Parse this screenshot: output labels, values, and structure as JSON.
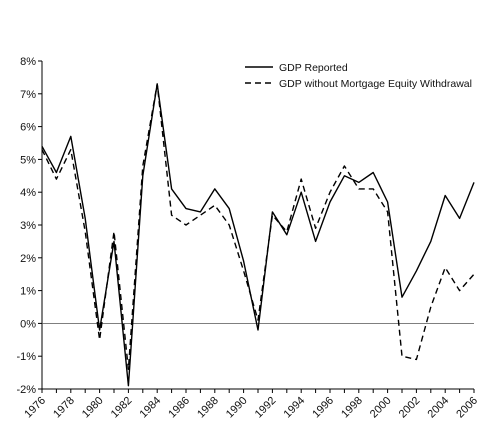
{
  "chart_data": {
    "type": "line",
    "title": "",
    "xlabel": "",
    "ylabel": "",
    "x": [
      1976,
      1977,
      1978,
      1979,
      1980,
      1981,
      1982,
      1983,
      1984,
      1985,
      1986,
      1987,
      1988,
      1989,
      1990,
      1991,
      1992,
      1993,
      1994,
      1995,
      1996,
      1997,
      1998,
      1999,
      2000,
      2001,
      2002,
      2003,
      2004,
      2005,
      2006
    ],
    "xticks": [
      "1976",
      "1978",
      "1980",
      "1982",
      "1984",
      "1986",
      "1988",
      "1990",
      "1992",
      "1994",
      "1996",
      "1998",
      "2000",
      "2002",
      "2004",
      "2006"
    ],
    "xtick_values": [
      1976,
      1978,
      1980,
      1982,
      1984,
      1986,
      1988,
      1990,
      1992,
      1994,
      1996,
      1998,
      2000,
      2002,
      2004,
      2006
    ],
    "yticks": [
      "8%",
      "7%",
      "6%",
      "5%",
      "4%",
      "3%",
      "2%",
      "1%",
      "0%",
      "-1%",
      "-2%"
    ],
    "ytick_values": [
      8,
      7,
      6,
      5,
      4,
      3,
      2,
      1,
      0,
      -1,
      -2
    ],
    "xlim": [
      1976,
      2006
    ],
    "ylim": [
      -2,
      8
    ],
    "grid": false,
    "zero_line": true,
    "legend_position": "top-right",
    "series": [
      {
        "name": "GDP Reported",
        "style": "solid",
        "color": "#000000",
        "x": [
          1976,
          1977,
          1978,
          1979,
          1980,
          1981,
          1982,
          1983,
          1984,
          1985,
          1986,
          1987,
          1988,
          1989,
          1990,
          1991,
          1992,
          1993,
          1994,
          1995,
          1996,
          1997,
          1998,
          1999,
          2000,
          2001,
          2002,
          2003,
          2004,
          2005,
          2006
        ],
        "values": [
          5.4,
          4.6,
          5.7,
          3.2,
          -0.2,
          2.5,
          -1.9,
          4.5,
          7.3,
          4.1,
          3.5,
          3.4,
          4.1,
          3.5,
          1.9,
          -0.2,
          3.4,
          2.7,
          4.0,
          2.5,
          3.7,
          4.5,
          4.3,
          4.6,
          3.7,
          0.8,
          1.6,
          2.5,
          3.9,
          3.2,
          4.3
        ]
      },
      {
        "name": "GDP without Mortgage Equity Withdrawal",
        "style": "dashed",
        "color": "#000000",
        "x": [
          1976,
          1977,
          1978,
          1979,
          1980,
          1981,
          1982,
          1983,
          1984,
          1985,
          1986,
          1987,
          1988,
          1989,
          1990,
          1991,
          1992,
          1993,
          1994,
          1995,
          1996,
          1997,
          1998,
          1999,
          2000,
          2001,
          2002,
          2003,
          2004,
          2005,
          2006
        ],
        "values": [
          5.3,
          4.4,
          5.3,
          2.8,
          -0.5,
          2.8,
          -1.4,
          4.8,
          7.3,
          3.3,
          3.0,
          3.3,
          3.6,
          3.0,
          1.6,
          0.1,
          3.3,
          2.8,
          4.4,
          2.9,
          4.0,
          4.8,
          4.1,
          4.1,
          3.4,
          -1.0,
          -1.1,
          0.5,
          1.7,
          1.0,
          1.5
        ]
      }
    ]
  }
}
